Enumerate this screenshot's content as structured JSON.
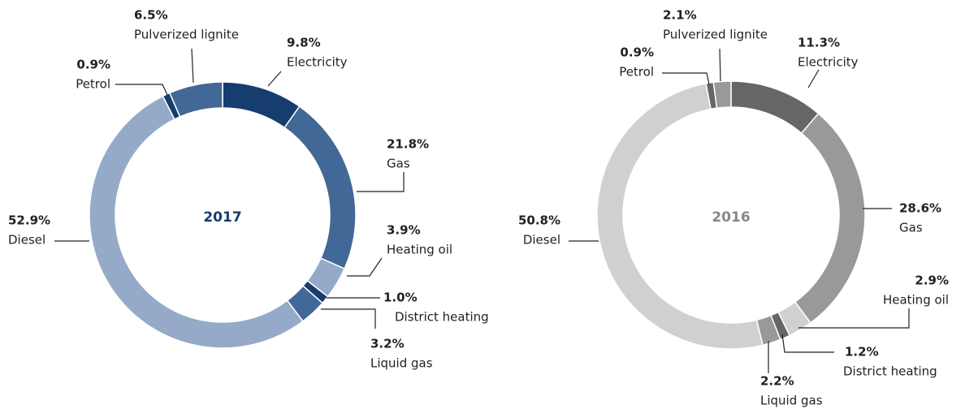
{
  "chart_data": [
    {
      "type": "pie",
      "title": "2017",
      "title_color": "#163d6e",
      "categories": [
        "Electricity",
        "Gas",
        "Heating oil",
        "District heating",
        "Liquid gas",
        "Diesel",
        "Petrol",
        "Pulverized lignite"
      ],
      "values": [
        9.8,
        21.8,
        3.9,
        1.0,
        3.2,
        52.9,
        0.9,
        6.5
      ],
      "value_labels": [
        "9.8%",
        "21.8%",
        "3.9%",
        "1.0%",
        "3.2%",
        "52.9%",
        "0.9%",
        "6.5%"
      ],
      "colors": [
        "#163d6e",
        "#426897",
        "#94aac8",
        "#163d6e",
        "#426897",
        "#94aac8",
        "#163d6e",
        "#426897"
      ]
    },
    {
      "type": "pie",
      "title": "2016",
      "title_color": "#888888",
      "categories": [
        "Electricity",
        "Gas",
        "Heating oil",
        "District heating",
        "Liquid gas",
        "Diesel",
        "Petrol",
        "Pulverized lignite"
      ],
      "values": [
        11.3,
        28.6,
        2.9,
        1.2,
        2.2,
        50.8,
        0.9,
        2.1
      ],
      "value_labels": [
        "11.3%",
        "28.6%",
        "2.9%",
        "1.2%",
        "2.2%",
        "50.8%",
        "0.9%",
        "2.1%"
      ],
      "colors": [
        "#666666",
        "#999999",
        "#d0d0d0",
        "#666666",
        "#999999",
        "#d0d0d0",
        "#666666",
        "#999999"
      ]
    }
  ]
}
